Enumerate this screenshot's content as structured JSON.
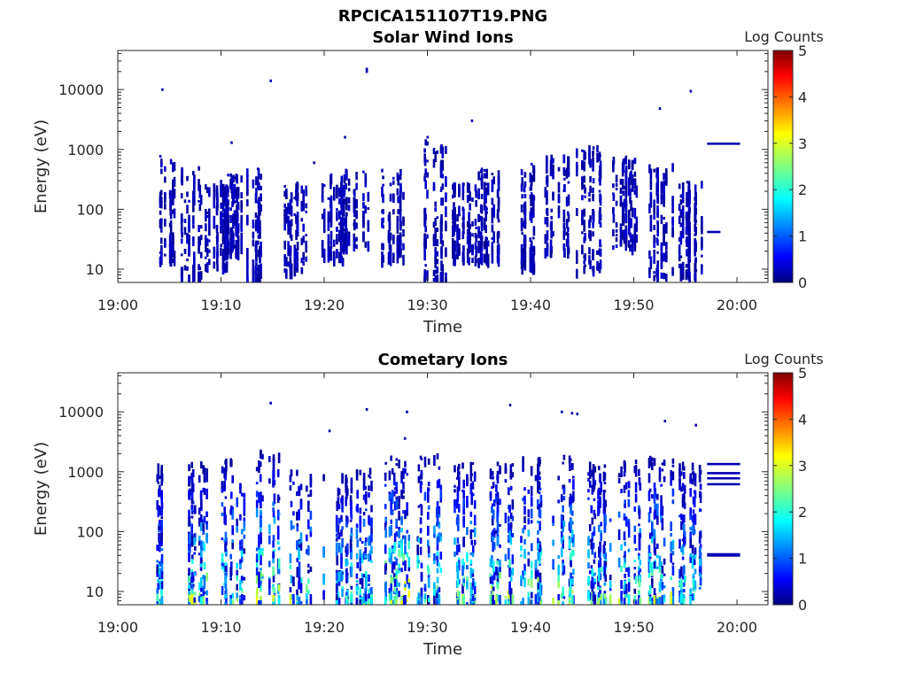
{
  "figure_title": "RPCICA151107T19.PNG",
  "chart_data": [
    {
      "type": "heatmap",
      "title": "Solar Wind Ions",
      "xlabel": "Time",
      "ylabel": "Energy (eV)",
      "x_ticks": [
        "19:00",
        "19:10",
        "19:20",
        "19:30",
        "19:40",
        "19:50",
        "20:00"
      ],
      "xlim": [
        "19:00",
        "20:03"
      ],
      "y_scale": "log",
      "y_ticks": [
        "10",
        "100",
        "1000",
        "10000"
      ],
      "ylim": [
        6,
        45000
      ],
      "grid": false,
      "colorbar": {
        "label": "Log Counts",
        "ticks": [
          "0",
          "1",
          "2",
          "3",
          "4",
          "5"
        ],
        "range": [
          0,
          5
        ],
        "colormap": "jet"
      },
      "bursts": [
        {
          "t": 4.2,
          "emin": 15,
          "emax": 900,
          "intensity": 0.15
        },
        {
          "t": 7.0,
          "emin": 6,
          "emax": 600,
          "intensity": 0.15
        },
        {
          "t": 9.5,
          "emin": 12,
          "emax": 300,
          "intensity": 0.1
        },
        {
          "t": 11.0,
          "emin": 20,
          "emax": 400,
          "intensity": 0.1
        },
        {
          "t": 13.5,
          "emin": 6,
          "emax": 500,
          "intensity": 0.15
        },
        {
          "t": 17.0,
          "emin": 10,
          "emax": 300,
          "intensity": 0.15
        },
        {
          "t": 20.5,
          "emin": 15,
          "emax": 400,
          "intensity": 0.1
        },
        {
          "t": 23.0,
          "emin": 25,
          "emax": 500,
          "intensity": 0.1
        },
        {
          "t": 26.5,
          "emin": 15,
          "emax": 500,
          "intensity": 0.15
        },
        {
          "t": 30.5,
          "emin": 6,
          "emax": 1500,
          "intensity": 0.15
        },
        {
          "t": 33.5,
          "emin": 15,
          "emax": 300,
          "intensity": 0.1
        },
        {
          "t": 36.0,
          "emin": 15,
          "emax": 500,
          "intensity": 0.1
        },
        {
          "t": 39.5,
          "emin": 12,
          "emax": 600,
          "intensity": 0.15
        },
        {
          "t": 42.5,
          "emin": 20,
          "emax": 900,
          "intensity": 0.15
        },
        {
          "t": 45.5,
          "emin": 10,
          "emax": 1200,
          "intensity": 0.1
        },
        {
          "t": 49.0,
          "emin": 25,
          "emax": 800,
          "intensity": 0.1
        },
        {
          "t": 52.5,
          "emin": 8,
          "emax": 600,
          "intensity": 0.15
        },
        {
          "t": 55.5,
          "emin": 8,
          "emax": 300,
          "intensity": 0.1
        }
      ],
      "lines": [
        {
          "t0": 57.1,
          "t1": 60.3,
          "e": 1250
        },
        {
          "t0": 57.1,
          "t1": 58.4,
          "e": 42
        }
      ],
      "points": [
        {
          "t": 4.3,
          "e": 10000
        },
        {
          "t": 14.8,
          "e": 14000
        },
        {
          "t": 24.1,
          "e": 20000
        },
        {
          "t": 24.1,
          "e": 22000
        },
        {
          "t": 34.3,
          "e": 3000
        },
        {
          "t": 52.5,
          "e": 4800
        },
        {
          "t": 55.5,
          "e": 9400
        },
        {
          "t": 30.0,
          "e": 1600
        },
        {
          "t": 22.0,
          "e": 1600
        },
        {
          "t": 11.0,
          "e": 1300
        },
        {
          "t": 19.0,
          "e": 600
        }
      ]
    },
    {
      "type": "heatmap",
      "title": "Cometary Ions",
      "xlabel": "Time",
      "ylabel": "Energy (eV)",
      "x_ticks": [
        "19:00",
        "19:10",
        "19:20",
        "19:30",
        "19:40",
        "19:50",
        "20:00"
      ],
      "xlim": [
        "19:00",
        "20:03"
      ],
      "y_scale": "log",
      "y_ticks": [
        "10",
        "100",
        "1000",
        "10000"
      ],
      "ylim": [
        6,
        45000
      ],
      "grid": false,
      "colorbar": {
        "label": "Log Counts",
        "ticks": [
          "0",
          "1",
          "2",
          "3",
          "4",
          "5"
        ],
        "range": [
          0,
          5
        ],
        "colormap": "jet"
      },
      "bursts": [
        {
          "t": 4.0,
          "emin": 6,
          "emax": 1500,
          "intensity": 0.35
        },
        {
          "t": 7.5,
          "emin": 6,
          "emax": 1500,
          "intensity": 0.45
        },
        {
          "t": 11.0,
          "emin": 6,
          "emax": 1800,
          "intensity": 0.4
        },
        {
          "t": 14.5,
          "emin": 6,
          "emax": 2500,
          "intensity": 0.45
        },
        {
          "t": 17.5,
          "emin": 6,
          "emax": 1200,
          "intensity": 0.4
        },
        {
          "t": 21.0,
          "emin": 6,
          "emax": 1000,
          "intensity": 0.35
        },
        {
          "t": 23.5,
          "emin": 6,
          "emax": 1200,
          "intensity": 0.4
        },
        {
          "t": 27.0,
          "emin": 6,
          "emax": 2000,
          "intensity": 0.5
        },
        {
          "t": 30.0,
          "emin": 6,
          "emax": 2500,
          "intensity": 0.4
        },
        {
          "t": 33.5,
          "emin": 6,
          "emax": 1500,
          "intensity": 0.4
        },
        {
          "t": 37.0,
          "emin": 6,
          "emax": 1500,
          "intensity": 0.45
        },
        {
          "t": 40.0,
          "emin": 6,
          "emax": 2000,
          "intensity": 0.45
        },
        {
          "t": 43.0,
          "emin": 6,
          "emax": 2000,
          "intensity": 0.45
        },
        {
          "t": 46.5,
          "emin": 6,
          "emax": 1500,
          "intensity": 0.4
        },
        {
          "t": 49.5,
          "emin": 6,
          "emax": 1800,
          "intensity": 0.4
        },
        {
          "t": 52.5,
          "emin": 6,
          "emax": 2000,
          "intensity": 0.45
        },
        {
          "t": 55.5,
          "emin": 8,
          "emax": 1500,
          "intensity": 0.35
        }
      ],
      "lines": [
        {
          "t0": 57.1,
          "t1": 60.3,
          "e": 1350
        },
        {
          "t0": 57.1,
          "t1": 60.3,
          "e": 950
        },
        {
          "t0": 57.1,
          "t1": 60.3,
          "e": 780
        },
        {
          "t0": 57.1,
          "t1": 60.3,
          "e": 620
        },
        {
          "t0": 57.1,
          "t1": 60.3,
          "e": 42
        },
        {
          "t0": 57.1,
          "t1": 60.3,
          "e": 40
        }
      ],
      "points": [
        {
          "t": 14.8,
          "e": 14000
        },
        {
          "t": 24.1,
          "e": 11000
        },
        {
          "t": 28.0,
          "e": 10000
        },
        {
          "t": 38.0,
          "e": 13000
        },
        {
          "t": 43.0,
          "e": 10000
        },
        {
          "t": 44.0,
          "e": 9500
        },
        {
          "t": 44.5,
          "e": 9200
        },
        {
          "t": 56.0,
          "e": 6000
        },
        {
          "t": 53.0,
          "e": 7000
        },
        {
          "t": 20.5,
          "e": 4800
        },
        {
          "t": 27.8,
          "e": 3600
        }
      ]
    }
  ]
}
